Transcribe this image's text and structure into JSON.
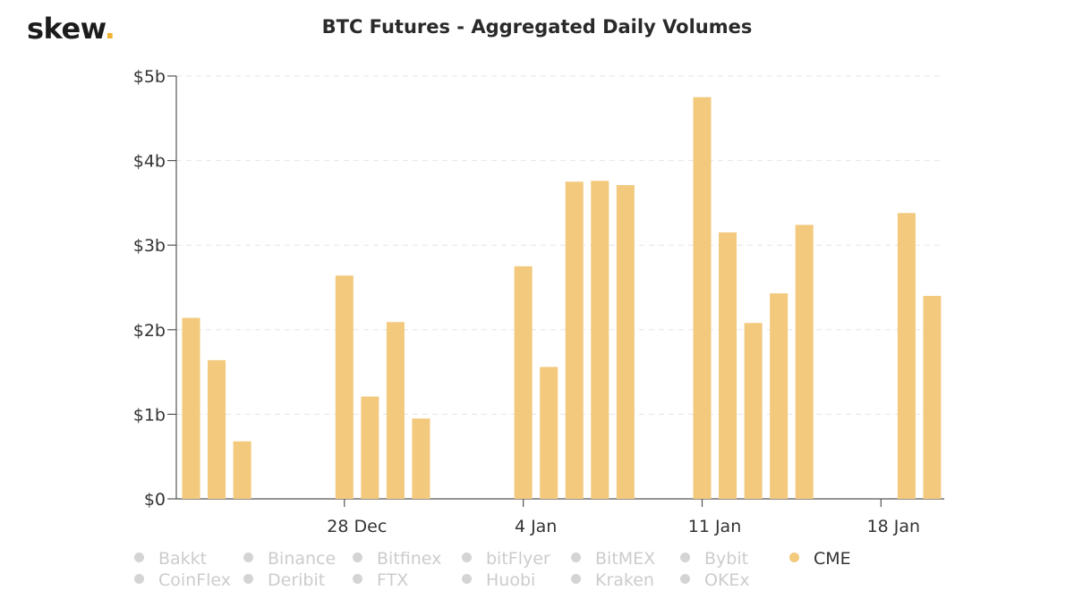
{
  "brand": {
    "name": "skew",
    "dot": ".",
    "accent_color": "#f0b330"
  },
  "chart_data": {
    "type": "bar",
    "title": "BTC Futures - Aggregated Daily Volumes",
    "xlabel": "",
    "ylabel": "",
    "bar_color": "#f2c97d",
    "grid": true,
    "legend_position": "bottom",
    "ylim": [
      0,
      5
    ],
    "yticks": [
      {
        "value": 0,
        "label": "$0"
      },
      {
        "value": 1,
        "label": "$1b"
      },
      {
        "value": 2,
        "label": "$2b"
      },
      {
        "value": 3,
        "label": "$3b"
      },
      {
        "value": 4,
        "label": "$4b"
      },
      {
        "value": 5,
        "label": "$5b"
      }
    ],
    "xticks": [
      {
        "date": "2020-12-28",
        "label": "28 Dec"
      },
      {
        "date": "2021-01-04",
        "label": "4 Jan"
      },
      {
        "date": "2021-01-11",
        "label": "11 Jan"
      },
      {
        "date": "2021-01-18",
        "label": "18 Jan"
      }
    ],
    "x": [
      "2020-12-22",
      "2020-12-23",
      "2020-12-24",
      "2020-12-25",
      "2020-12-26",
      "2020-12-27",
      "2020-12-28",
      "2020-12-29",
      "2020-12-30",
      "2020-12-31",
      "2021-01-01",
      "2021-01-02",
      "2021-01-03",
      "2021-01-04",
      "2021-01-05",
      "2021-01-06",
      "2021-01-07",
      "2021-01-08",
      "2021-01-09",
      "2021-01-10",
      "2021-01-11",
      "2021-01-12",
      "2021-01-13",
      "2021-01-14",
      "2021-01-15",
      "2021-01-16",
      "2021-01-17",
      "2021-01-18",
      "2021-01-19",
      "2021-01-20"
    ],
    "series": [
      {
        "name": "CME",
        "values": [
          2.14,
          1.64,
          0.68,
          0,
          0,
          0,
          2.64,
          1.21,
          2.09,
          0.95,
          0,
          0,
          0,
          2.75,
          1.56,
          3.75,
          3.76,
          3.71,
          0,
          0,
          4.75,
          3.15,
          2.08,
          2.43,
          3.24,
          0,
          0,
          0,
          3.38,
          2.4
        ]
      }
    ]
  },
  "legend": {
    "items": [
      {
        "label": "Bakkt",
        "active": false
      },
      {
        "label": "Binance",
        "active": false
      },
      {
        "label": "Bitfinex",
        "active": false
      },
      {
        "label": "bitFlyer",
        "active": false
      },
      {
        "label": "BitMEX",
        "active": false
      },
      {
        "label": "Bybit",
        "active": false
      },
      {
        "label": "CME",
        "active": true
      },
      {
        "label": "CoinFlex",
        "active": false
      },
      {
        "label": "Deribit",
        "active": false
      },
      {
        "label": "FTX",
        "active": false
      },
      {
        "label": "Huobi",
        "active": false
      },
      {
        "label": "Kraken",
        "active": false
      },
      {
        "label": "OKEx",
        "active": false
      }
    ],
    "inactive_color": "#cccccc",
    "active_color": "#f2c97d"
  }
}
